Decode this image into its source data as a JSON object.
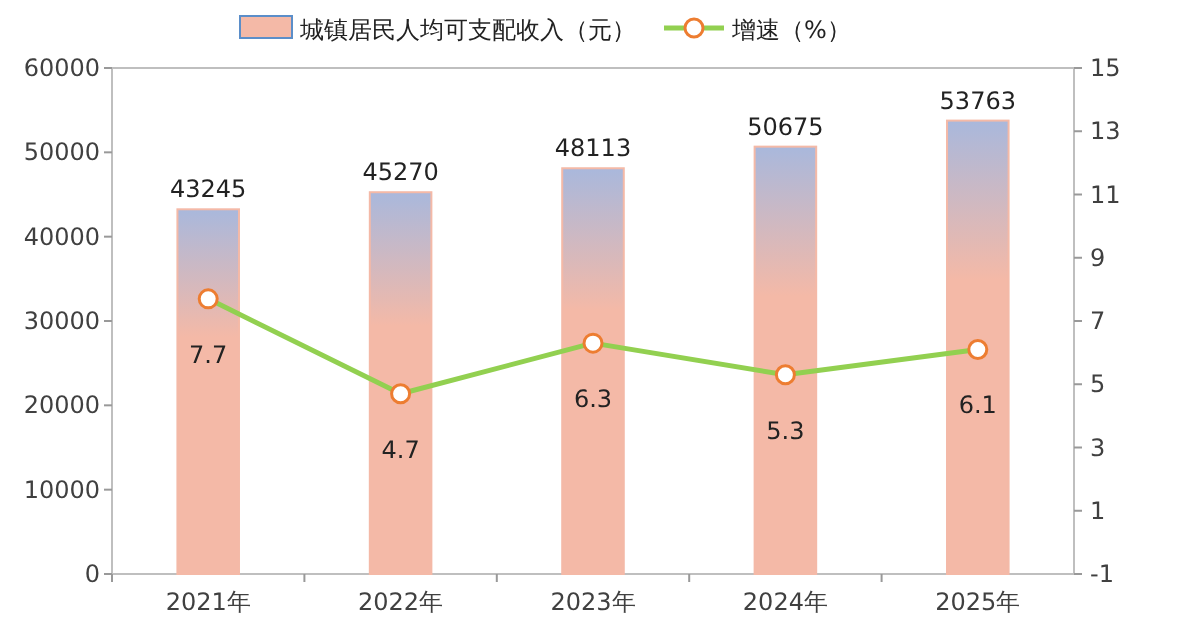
{
  "chart_data": {
    "type": "bar",
    "categories": [
      "2021年",
      "2022年",
      "2023年",
      "2024年",
      "2025年"
    ],
    "series": [
      {
        "name": "城镇居民人均可支配收入（元）",
        "color": "#f4b9a7",
        "values": [
          43245,
          45270,
          48113,
          50675,
          53763
        ]
      },
      {
        "name": "增速（%）",
        "type": "line",
        "axis": "y2",
        "color": "#92d050",
        "values": [
          7.7,
          4.7,
          6.3,
          5.3,
          6.1
        ]
      }
    ],
    "ylim": [
      0,
      60000
    ],
    "yticks": [
      0,
      10000,
      20000,
      30000,
      40000,
      50000,
      60000
    ],
    "y2lim": [
      -1,
      15
    ],
    "y2ticks": [
      -1,
      1,
      3,
      5,
      7,
      9,
      11,
      13,
      15
    ],
    "data_labels": true,
    "legend": "top",
    "marker": "circle"
  }
}
